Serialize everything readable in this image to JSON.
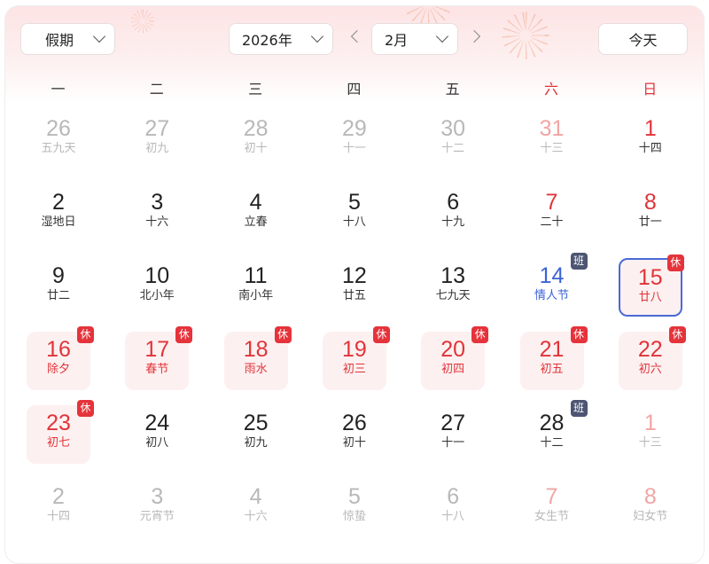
{
  "toolbar": {
    "holiday_select": "假期",
    "year_select": "2026年",
    "month_select": "2月",
    "today_button": "今天"
  },
  "weekdays": [
    "一",
    "二",
    "三",
    "四",
    "五",
    "六",
    "日"
  ],
  "colors": {
    "red": "#e0343a",
    "blue": "#3b63d6",
    "work_badge": "#4c5572",
    "holiday_bg": "#fdf0f0"
  },
  "cells": [
    {
      "day": "26",
      "lunar": "五九天",
      "cls": "other"
    },
    {
      "day": "27",
      "lunar": "初九",
      "cls": "other"
    },
    {
      "day": "28",
      "lunar": "初十",
      "cls": "other"
    },
    {
      "day": "29",
      "lunar": "十一",
      "cls": "other"
    },
    {
      "day": "30",
      "lunar": "十二",
      "cls": "other"
    },
    {
      "day": "31",
      "lunar": "十三",
      "cls": "other we"
    },
    {
      "day": "1",
      "lunar": "十四",
      "cls": "we"
    },
    {
      "day": "2",
      "lunar": "湿地日",
      "cls": ""
    },
    {
      "day": "3",
      "lunar": "十六",
      "cls": ""
    },
    {
      "day": "4",
      "lunar": "立春",
      "cls": ""
    },
    {
      "day": "5",
      "lunar": "十八",
      "cls": ""
    },
    {
      "day": "6",
      "lunar": "十九",
      "cls": ""
    },
    {
      "day": "7",
      "lunar": "二十",
      "cls": "we"
    },
    {
      "day": "8",
      "lunar": "廿一",
      "cls": "we"
    },
    {
      "day": "9",
      "lunar": "廿二",
      "cls": ""
    },
    {
      "day": "10",
      "lunar": "北小年",
      "cls": ""
    },
    {
      "day": "11",
      "lunar": "南小年",
      "cls": ""
    },
    {
      "day": "12",
      "lunar": "廿五",
      "cls": ""
    },
    {
      "day": "13",
      "lunar": "七九天",
      "cls": ""
    },
    {
      "day": "14",
      "lunar": "情人节",
      "cls": "fest",
      "badge": "班"
    },
    {
      "day": "15",
      "lunar": "廿八",
      "cls": "hol today",
      "badge": "休"
    },
    {
      "day": "16",
      "lunar": "除夕",
      "cls": "hol",
      "badge": "休"
    },
    {
      "day": "17",
      "lunar": "春节",
      "cls": "hol",
      "badge": "休"
    },
    {
      "day": "18",
      "lunar": "雨水",
      "cls": "hol",
      "badge": "休"
    },
    {
      "day": "19",
      "lunar": "初三",
      "cls": "hol",
      "badge": "休"
    },
    {
      "day": "20",
      "lunar": "初四",
      "cls": "hol",
      "badge": "休"
    },
    {
      "day": "21",
      "lunar": "初五",
      "cls": "hol",
      "badge": "休"
    },
    {
      "day": "22",
      "lunar": "初六",
      "cls": "hol",
      "badge": "休"
    },
    {
      "day": "23",
      "lunar": "初七",
      "cls": "hol",
      "badge": "休"
    },
    {
      "day": "24",
      "lunar": "初八",
      "cls": ""
    },
    {
      "day": "25",
      "lunar": "初九",
      "cls": ""
    },
    {
      "day": "26",
      "lunar": "初十",
      "cls": ""
    },
    {
      "day": "27",
      "lunar": "十一",
      "cls": ""
    },
    {
      "day": "28",
      "lunar": "十二",
      "cls": "",
      "badge": "班"
    },
    {
      "day": "1",
      "lunar": "十三",
      "cls": "other we"
    },
    {
      "day": "2",
      "lunar": "十四",
      "cls": "other"
    },
    {
      "day": "3",
      "lunar": "元宵节",
      "cls": "other"
    },
    {
      "day": "4",
      "lunar": "十六",
      "cls": "other"
    },
    {
      "day": "5",
      "lunar": "惊蛰",
      "cls": "other"
    },
    {
      "day": "6",
      "lunar": "十八",
      "cls": "other"
    },
    {
      "day": "7",
      "lunar": "女生节",
      "cls": "other we"
    },
    {
      "day": "8",
      "lunar": "妇女节",
      "cls": "other we"
    }
  ]
}
